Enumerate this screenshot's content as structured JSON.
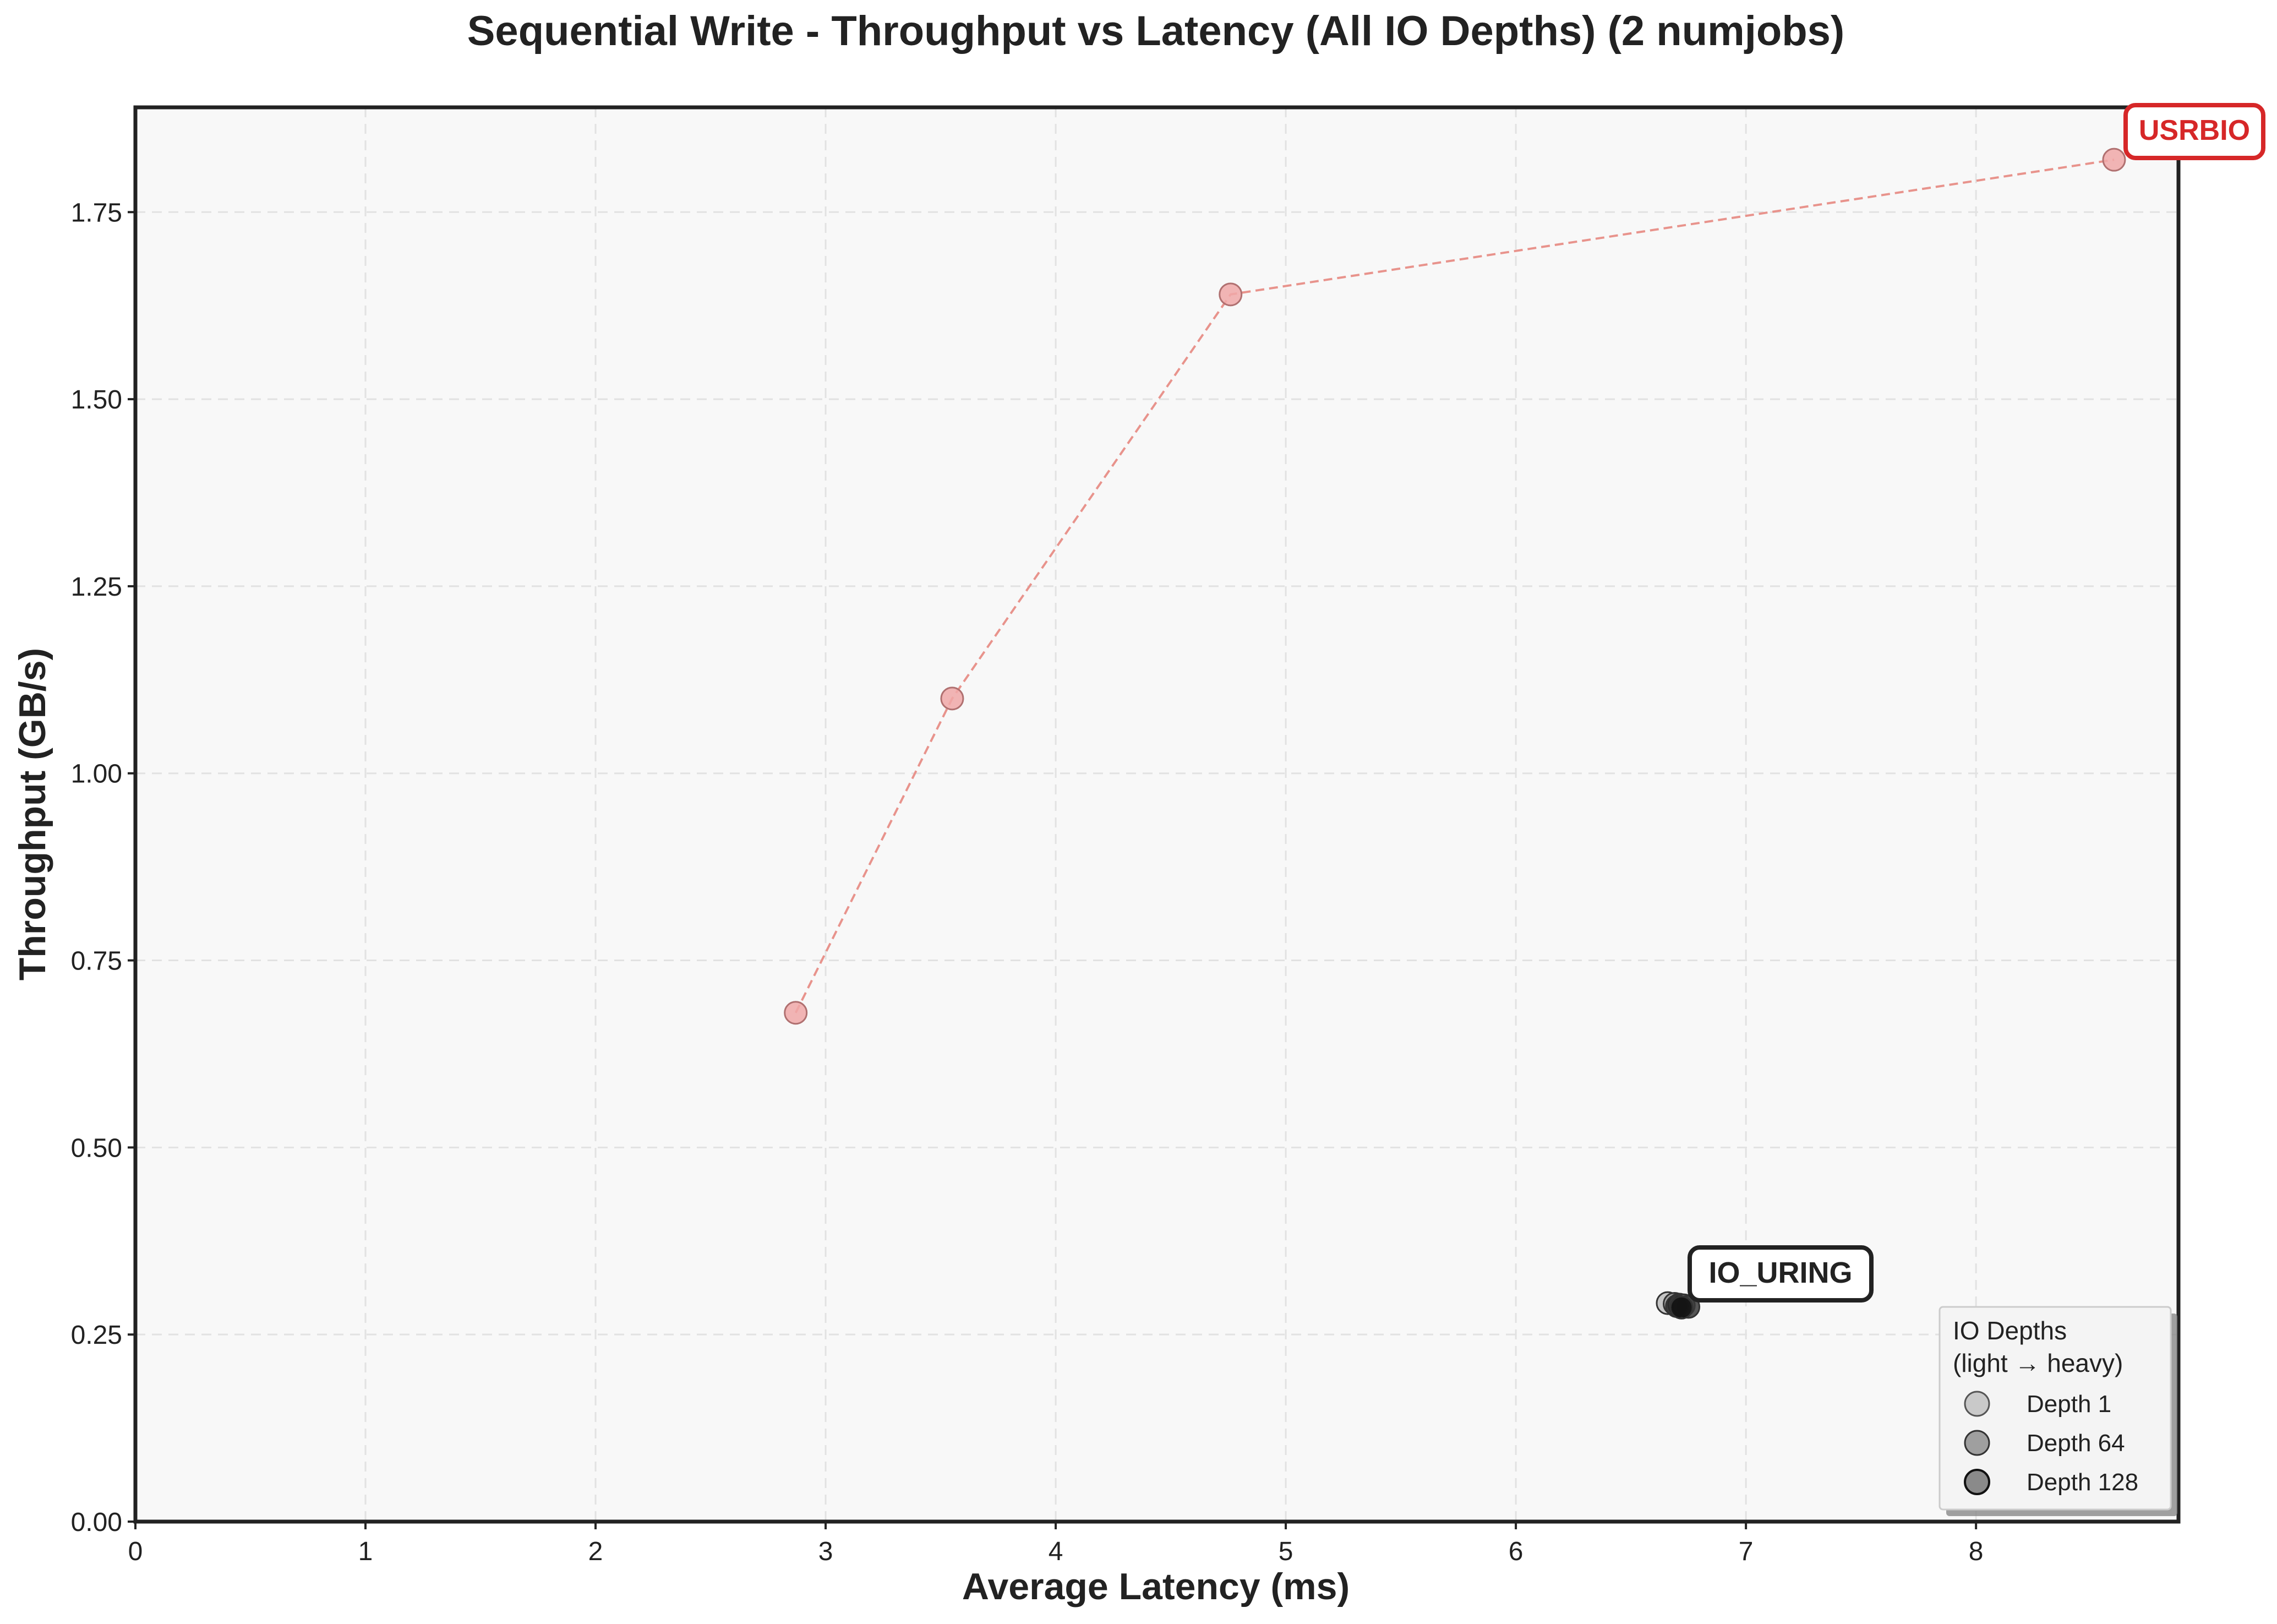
{
  "chart_data": {
    "type": "scatter",
    "title": "Sequential Write - Throughput vs Latency (All IO Depths) (2 numjobs)",
    "xlabel": "Average Latency (ms)",
    "ylabel": "Throughput (GB/s)",
    "xlim": [
      0,
      8.88
    ],
    "ylim": [
      0,
      1.89
    ],
    "x_ticks": [
      0,
      1,
      2,
      3,
      4,
      5,
      6,
      7,
      8
    ],
    "x_tick_labels": [
      "0",
      "1",
      "2",
      "3",
      "4",
      "5",
      "6",
      "7",
      "8"
    ],
    "y_ticks": [
      0,
      0.25,
      0.5,
      0.75,
      1.0,
      1.25,
      1.5,
      1.75
    ],
    "y_tick_labels": [
      "0.00",
      "0.25",
      "0.50",
      "0.75",
      "1.00",
      "1.25",
      "1.50",
      "1.75"
    ],
    "grid": true,
    "legend_placement": "lower-right",
    "legend": {
      "title_line1": "IO Depths",
      "title_line2": "(light → heavy)",
      "entries": [
        "Depth 1",
        "Depth 64",
        "Depth 128"
      ]
    },
    "series": [
      {
        "name": "USRBIO",
        "color": "#d62728",
        "x": [
          2.87,
          3.55,
          4.76,
          8.6
        ],
        "y": [
          0.68,
          1.1,
          1.64,
          1.82
        ]
      },
      {
        "name": "IO_URING",
        "color": "#222222",
        "x": [
          6.66,
          6.69,
          6.71,
          6.73,
          6.75,
          6.7,
          6.72
        ],
        "y": [
          0.292,
          0.291,
          0.29,
          0.289,
          0.287,
          0.288,
          0.286
        ]
      }
    ]
  }
}
